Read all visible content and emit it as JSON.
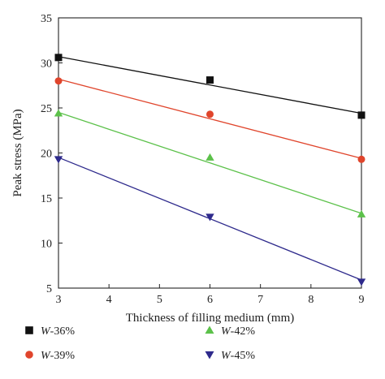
{
  "chart_data": {
    "type": "scatter",
    "xlabel": "Thickness of filling medium (mm)",
    "ylabel": "Peak stress (MPa)",
    "xlim": [
      3,
      9
    ],
    "ylim": [
      5,
      35
    ],
    "xticks": [
      3,
      4,
      5,
      6,
      7,
      8,
      9
    ],
    "yticks": [
      5,
      10,
      15,
      20,
      25,
      30,
      35
    ],
    "grid": false,
    "legend_position": "bottom",
    "series": [
      {
        "name_prefix": "W",
        "name_suffix": "-36%",
        "marker": "square",
        "color": "#111111",
        "x": [
          3,
          6,
          9
        ],
        "y": [
          30.6,
          28.1,
          24.2
        ],
        "fit": [
          30.7,
          24.4
        ]
      },
      {
        "name_prefix": "W",
        "name_suffix": "-39%",
        "marker": "circle",
        "color": "#e0452c",
        "x": [
          3,
          6,
          9
        ],
        "y": [
          28.0,
          24.3,
          19.3
        ],
        "fit": [
          28.2,
          19.4
        ]
      },
      {
        "name_prefix": "W",
        "name_suffix": "-42%",
        "marker": "triangle-up",
        "color": "#5cc14a",
        "x": [
          3,
          6,
          9
        ],
        "y": [
          24.4,
          19.5,
          13.2
        ],
        "fit": [
          24.5,
          13.3
        ]
      },
      {
        "name_prefix": "W",
        "name_suffix": "-45%",
        "marker": "triangle-down",
        "color": "#2e2a8c",
        "x": [
          3,
          6,
          9
        ],
        "y": [
          19.3,
          12.9,
          5.7
        ],
        "fit": [
          19.5,
          5.9
        ]
      }
    ]
  }
}
